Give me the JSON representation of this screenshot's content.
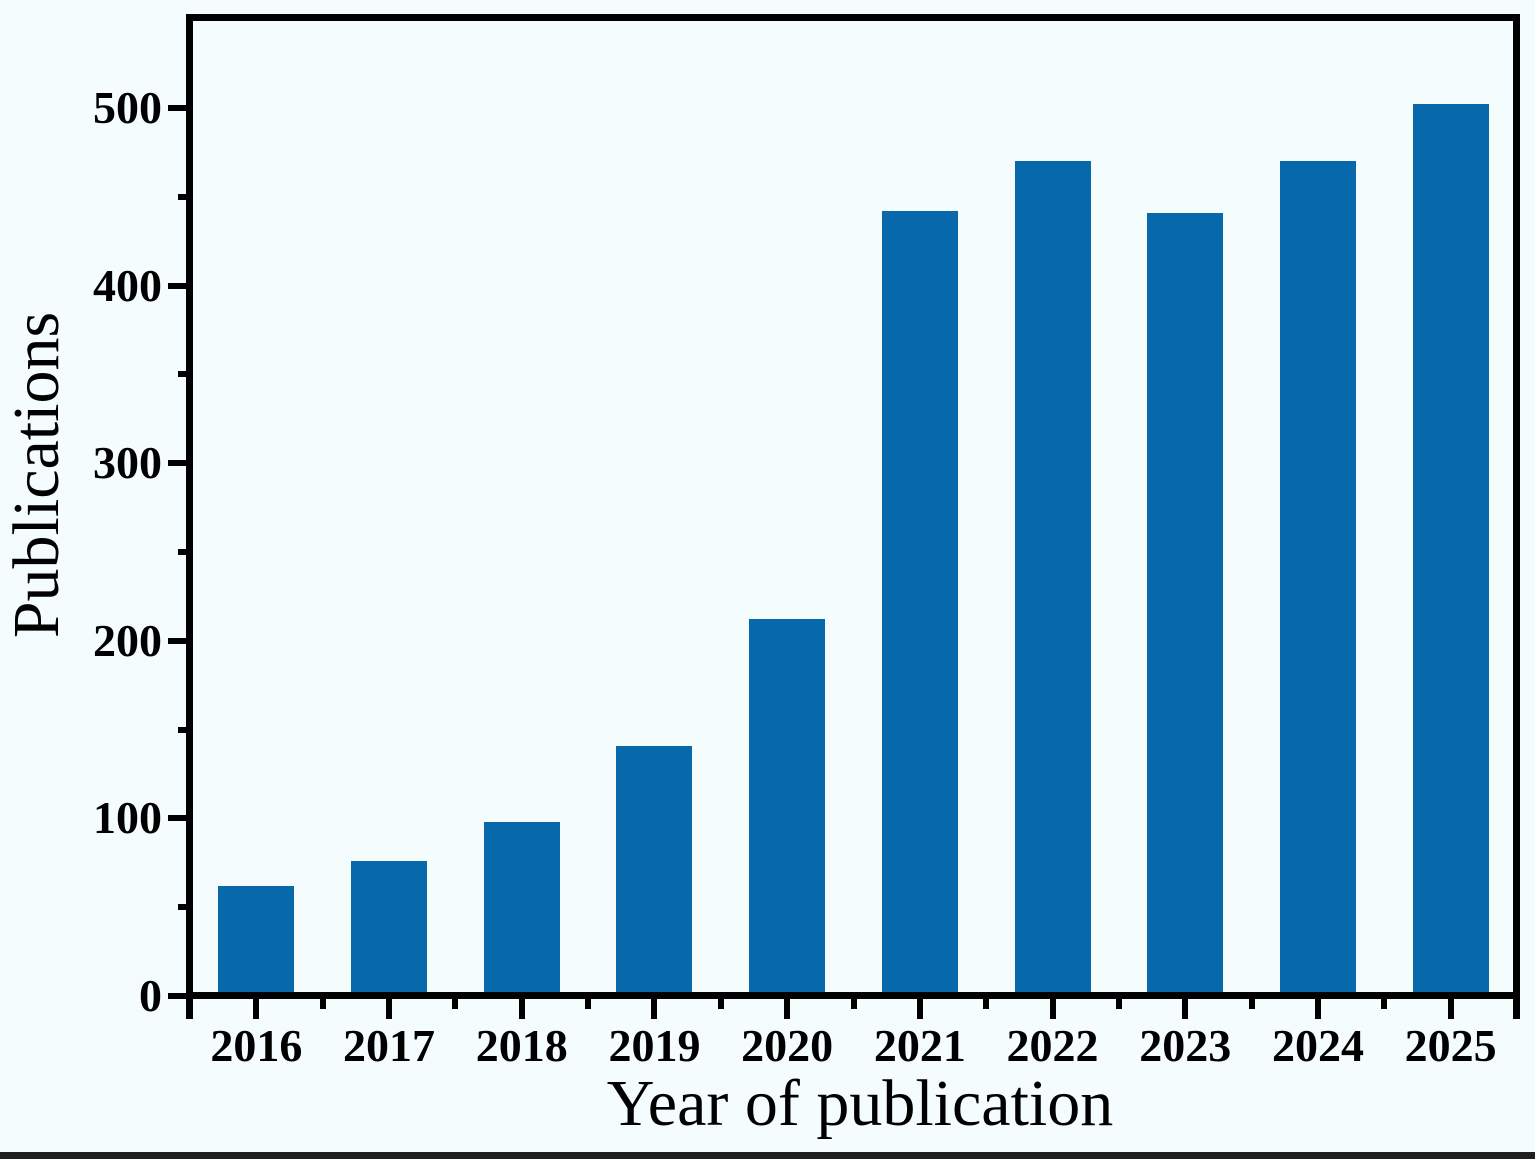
{
  "figure": {
    "background_color": "#F5FCFD",
    "bottom_strip_color": "#1F1F1F"
  },
  "chart_data": {
    "type": "bar",
    "title": "",
    "categories": [
      "2016",
      "2017",
      "2018",
      "2019",
      "2020",
      "2021",
      "2022",
      "2023",
      "2024",
      "2025"
    ],
    "values": [
      62,
      76,
      98,
      141,
      212,
      442,
      470,
      441,
      470,
      502
    ],
    "xlabel": "Year of publication",
    "ylabel": "Publications",
    "ylim": [
      0,
      550
    ],
    "yticks_major": [
      0,
      100,
      200,
      300,
      400,
      500
    ],
    "yticks_minor": [
      50,
      150,
      250,
      350,
      450
    ],
    "bar_color": "#0768AC",
    "axis_color": "#000000",
    "grid": false,
    "legend": "none"
  }
}
